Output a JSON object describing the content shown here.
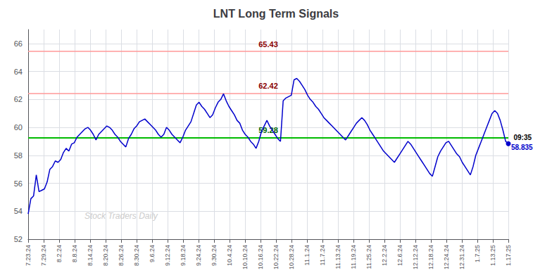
{
  "chart_data": {
    "type": "line",
    "title": "LNT Long Term Signals",
    "color": "#0000cc",
    "grid": true,
    "xlim": [
      0,
      31
    ],
    "xticks": [
      {
        "value": 0,
        "label": "7.23.24"
      },
      {
        "value": 1,
        "label": "7.29.24"
      },
      {
        "value": 2,
        "label": "8.2.24"
      },
      {
        "value": 3,
        "label": "8.8.24"
      },
      {
        "value": 4,
        "label": "8.14.24"
      },
      {
        "value": 5,
        "label": "8.20.24"
      },
      {
        "value": 6,
        "label": "8.26.24"
      },
      {
        "value": 7,
        "label": "8.30.24"
      },
      {
        "value": 8,
        "label": "9.6.24"
      },
      {
        "value": 9,
        "label": "9.12.24"
      },
      {
        "value": 10,
        "label": "9.18.24"
      },
      {
        "value": 11,
        "label": "9.24.24"
      },
      {
        "value": 12,
        "label": "9.30.24"
      },
      {
        "value": 13,
        "label": "10.4.24"
      },
      {
        "value": 14,
        "label": "10.10.24"
      },
      {
        "value": 15,
        "label": "10.16.24"
      },
      {
        "value": 16,
        "label": "10.22.24"
      },
      {
        "value": 17,
        "label": "10.28.24"
      },
      {
        "value": 18,
        "label": "11.1.24"
      },
      {
        "value": 19,
        "label": "11.7.24"
      },
      {
        "value": 20,
        "label": "11.13.24"
      },
      {
        "value": 21,
        "label": "11.19.24"
      },
      {
        "value": 22,
        "label": "11.25.24"
      },
      {
        "value": 23,
        "label": "12.2.24"
      },
      {
        "value": 24,
        "label": "12.6.24"
      },
      {
        "value": 25,
        "label": "12.12.24"
      },
      {
        "value": 26,
        "label": "12.18.24"
      },
      {
        "value": 27,
        "label": "12.24.24"
      },
      {
        "value": 28,
        "label": "12.31.24"
      },
      {
        "value": 29,
        "label": "1.7.25"
      },
      {
        "value": 30,
        "label": "1.13.25"
      },
      {
        "value": 31,
        "label": "1.17.25"
      }
    ],
    "ylim": [
      52,
      67
    ],
    "yticks": [
      52,
      54,
      56,
      58,
      60,
      62,
      64,
      66
    ],
    "values": [
      53.8,
      54.9,
      55.1,
      56.6,
      55.4,
      55.5,
      55.6,
      56.1,
      57.0,
      57.2,
      57.6,
      57.5,
      57.7,
      58.2,
      58.5,
      58.3,
      58.8,
      58.9,
      59.3,
      59.5,
      59.7,
      59.9,
      60.0,
      59.8,
      59.5,
      59.1,
      59.5,
      59.7,
      59.9,
      60.1,
      60.0,
      59.8,
      59.5,
      59.3,
      59.0,
      58.8,
      58.6,
      59.2,
      59.5,
      59.9,
      60.1,
      60.4,
      60.5,
      60.6,
      60.4,
      60.2,
      60.0,
      59.8,
      59.5,
      59.3,
      59.5,
      60.0,
      59.8,
      59.5,
      59.3,
      59.1,
      58.9,
      59.3,
      59.8,
      60.1,
      60.4,
      61.0,
      61.6,
      61.8,
      61.5,
      61.3,
      61.0,
      60.7,
      60.9,
      61.4,
      61.8,
      62.0,
      62.4,
      61.9,
      61.5,
      61.2,
      60.9,
      60.5,
      60.3,
      59.8,
      59.5,
      59.3,
      59.0,
      58.8,
      58.5,
      59.0,
      59.7,
      60.1,
      60.5,
      60.1,
      59.8,
      59.5,
      59.2,
      59.0,
      61.9,
      62.1,
      62.2,
      62.3,
      63.4,
      63.5,
      63.3,
      63.0,
      62.7,
      62.3,
      62.0,
      61.8,
      61.5,
      61.3,
      61.0,
      60.7,
      60.5,
      60.3,
      60.1,
      59.9,
      59.7,
      59.5,
      59.3,
      59.1,
      59.4,
      59.7,
      60.0,
      60.3,
      60.5,
      60.7,
      60.5,
      60.2,
      59.8,
      59.5,
      59.2,
      58.9,
      58.6,
      58.3,
      58.1,
      57.9,
      57.7,
      57.5,
      57.8,
      58.1,
      58.4,
      58.7,
      59.0,
      58.8,
      58.5,
      58.2,
      57.9,
      57.6,
      57.3,
      57.0,
      56.7,
      56.5,
      57.2,
      57.9,
      58.3,
      58.6,
      58.9,
      59.0,
      58.7,
      58.4,
      58.1,
      57.9,
      57.5,
      57.2,
      56.9,
      56.6,
      57.2,
      58.0,
      58.5,
      59.0,
      59.5,
      60.0,
      60.5,
      61.0,
      61.2,
      61.0,
      60.5,
      59.8,
      59.0,
      58.835
    ],
    "annotations": [
      {
        "type": "hline",
        "text": "65.43",
        "y": 65.43,
        "color": "#ff9999",
        "text_color": "#8b0000"
      },
      {
        "type": "hline",
        "text": "62.42",
        "y": 62.42,
        "color": "#ff9999",
        "text_color": "#8b0000"
      },
      {
        "type": "hline",
        "text": "59.28",
        "y": 59.28,
        "color": "#00bb00",
        "text_color": "#006600"
      },
      {
        "type": "point_label",
        "text": "09:35",
        "y": 58.835,
        "marker": "circle",
        "color": "#0000cc",
        "text_color": "#000000"
      },
      {
        "type": "point_label",
        "text": "58.835",
        "y": 58.835,
        "text_color": "#0000cc"
      },
      {
        "type": "watermark",
        "text": "Stock Traders Daily",
        "text_color": "#cccccc"
      }
    ]
  }
}
